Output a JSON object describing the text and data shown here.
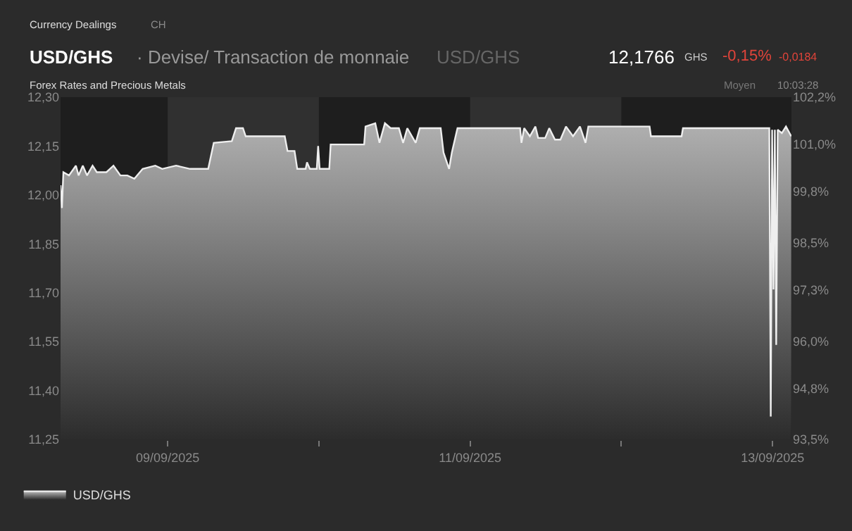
{
  "chart_data": {
    "type": "area",
    "title": "USD/GHS",
    "subtitle": "Forex Rates and Precious Metals",
    "annotations": [
      "Currency Dealings",
      "CH",
      "· Devise/ Transaction de monnaie",
      "USD/GHS",
      "12,1766",
      "GHS",
      "-0,15%",
      "-0,0184",
      "Moyen",
      "10:03:28"
    ],
    "series": [
      {
        "name": "USD/GHS",
        "color": "#eeeeee",
        "x": [
          "2025-09-08T07:00",
          "2025-09-08T07:13",
          "2025-09-08T07:27",
          "2025-09-08T08:20",
          "2025-09-08T09:26",
          "2025-09-08T09:52",
          "2025-09-08T10:32",
          "2025-09-08T11:12",
          "2025-09-08T12:05",
          "2025-09-08T12:45",
          "2025-09-08T14:17",
          "2025-09-08T15:24",
          "2025-09-08T16:30",
          "2025-09-08T17:36",
          "2025-09-08T18:43",
          "2025-09-08T20:02",
          "2025-09-08T22:02",
          "2025-09-08T23:08",
          "2025-09-09T01:20",
          "2025-09-09T03:33",
          "2025-09-09T06:26",
          "2025-09-09T07:19",
          "2025-09-09T10:11",
          "2025-09-09T10:51",
          "2025-09-09T11:57",
          "2025-09-09T12:23",
          "2025-09-09T14:36",
          "2025-09-09T18:35",
          "2025-09-09T19:01",
          "2025-09-09T20:08",
          "2025-09-09T20:34",
          "2025-09-09T21:54",
          "2025-09-09T22:07",
          "2025-09-09T22:34",
          "2025-09-09T23:40",
          "2025-09-09T23:53",
          "2025-09-10T00:07",
          "2025-09-10T01:39",
          "2025-09-10T01:52",
          "2025-09-10T07:11",
          "2025-09-10T07:24",
          "2025-09-10T08:57",
          "2025-09-10T09:37",
          "2025-09-10T10:29",
          "2025-09-10T11:23",
          "2025-09-10T12:42",
          "2025-09-10T13:22",
          "2025-09-10T14:02",
          "2025-09-10T15:22",
          "2025-09-10T16:01",
          "2025-09-10T19:20",
          "2025-09-10T19:47",
          "2025-09-10T20:40",
          "2025-09-10T21:06",
          "2025-09-10T22:00",
          "2025-09-11T07:56",
          "2025-09-11T08:09",
          "2025-09-11T08:35",
          "2025-09-11T09:29",
          "2025-09-11T10:22",
          "2025-09-11T10:48",
          "2025-09-11T11:55",
          "2025-09-11T12:34",
          "2025-09-11T13:28",
          "2025-09-11T14:20",
          "2025-09-11T15:13",
          "2025-09-11T16:20",
          "2025-09-11T17:26",
          "2025-09-11T18:19",
          "2025-09-11T18:46",
          "2025-09-12T00:04",
          "2025-09-12T01:37",
          "2025-09-12T04:29",
          "2025-09-12T04:42",
          "2025-09-12T09:34",
          "2025-09-12T09:47",
          "2025-09-12T23:29",
          "2025-09-12T23:43",
          "2025-09-12T23:56",
          "2025-09-13T00:09",
          "2025-09-13T00:22",
          "2025-09-13T00:35",
          "2025-09-13T00:49",
          "2025-09-13T01:29",
          "2025-09-13T02:08",
          "2025-09-13T02:58"
        ],
        "values": [
          12.03,
          11.96,
          12.07,
          12.06,
          12.09,
          12.06,
          12.09,
          12.06,
          12.09,
          12.07,
          12.07,
          12.09,
          12.06,
          12.06,
          12.05,
          12.08,
          12.09,
          12.08,
          12.09,
          12.08,
          12.08,
          12.16,
          12.165,
          12.205,
          12.205,
          12.18,
          12.18,
          12.18,
          12.135,
          12.135,
          12.08,
          12.08,
          12.1,
          12.08,
          12.08,
          12.15,
          12.08,
          12.08,
          12.155,
          12.155,
          12.21,
          12.22,
          12.16,
          12.22,
          12.205,
          12.205,
          12.16,
          12.205,
          12.16,
          12.205,
          12.205,
          12.13,
          12.08,
          12.13,
          12.205,
          12.205,
          12.16,
          12.205,
          12.18,
          12.21,
          12.175,
          12.175,
          12.205,
          12.17,
          12.17,
          12.21,
          12.18,
          12.21,
          12.16,
          12.21,
          12.21,
          12.21,
          12.21,
          12.18,
          12.18,
          12.205,
          12.205,
          11.32,
          12.2,
          11.71,
          12.2,
          11.54,
          12.2,
          12.19,
          12.21,
          12.18
        ]
      }
    ],
    "xlim": [
      "2025-09-08T07:00",
      "2025-09-13T03:00"
    ],
    "xticks": [
      {
        "value": "2025-09-09",
        "label": "09/09/2025"
      },
      {
        "value": "2025-09-10",
        "label": null
      },
      {
        "value": "2025-09-11",
        "label": "11/09/2025"
      },
      {
        "value": "2025-09-12",
        "label": null
      },
      {
        "value": "2025-09-13",
        "label": "13/09/2025"
      }
    ],
    "ylim": [
      11.25,
      12.3
    ],
    "yticks": [
      {
        "value": 11.25,
        "label": "11,25"
      },
      {
        "value": 11.4,
        "label": "11,40"
      },
      {
        "value": 11.55,
        "label": "11,55"
      },
      {
        "value": 11.7,
        "label": "11,70"
      },
      {
        "value": 11.85,
        "label": "11,85"
      },
      {
        "value": 12.0,
        "label": "12,00"
      },
      {
        "value": 12.15,
        "label": "12,15"
      },
      {
        "value": 12.3,
        "label": "12,30"
      }
    ],
    "y2lim": [
      93.5,
      102.2
    ],
    "y2ticks": [
      {
        "value": 93.5,
        "label": "93,5%"
      },
      {
        "value": 94.8,
        "label": "94,8%"
      },
      {
        "value": 96.0,
        "label": "96,0%"
      },
      {
        "value": 97.3,
        "label": "97,3%"
      },
      {
        "value": 98.5,
        "label": "98,5%"
      },
      {
        "value": 99.8,
        "label": "99,8%"
      },
      {
        "value": 101.0,
        "label": "101,0%"
      },
      {
        "value": 102.2,
        "label": "102,2%"
      }
    ],
    "bands": [
      {
        "axis": "x",
        "from": "2025-09-09",
        "to": "2025-09-10",
        "color": "#303030"
      },
      {
        "axis": "x",
        "from": "2025-09-11",
        "to": "2025-09-12",
        "color": "#303030"
      }
    ],
    "grid": false,
    "legend": "bottom left",
    "marker": "none",
    "line_style": "solid"
  }
}
